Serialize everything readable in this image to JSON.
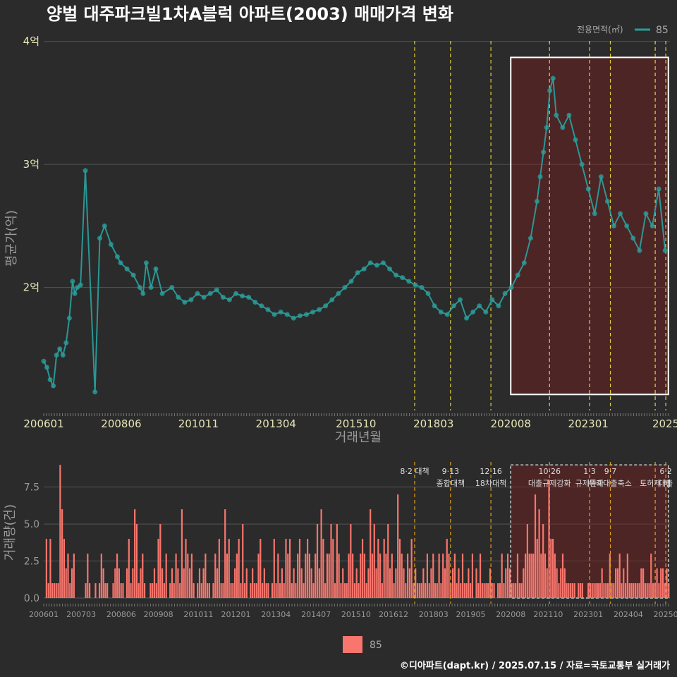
{
  "chart_data": [
    {
      "type": "line",
      "title": "양벌 대주파크빌1차A블럭 아파트(2003) 매매가격 변화",
      "xlabel": "거래년월",
      "ylabel": "평균가(억)",
      "legend_title": "전용면적(㎡)",
      "legend_label": "85",
      "legend_position": "top-right",
      "x_range": [
        2006.0,
        2025.55
      ],
      "y_range": [
        1.0,
        4.05
      ],
      "x_ticks": [
        {
          "label": "200601",
          "value": 2006.0
        },
        {
          "label": "200806",
          "value": 2008.42
        },
        {
          "label": "201011",
          "value": 2010.83
        },
        {
          "label": "201304",
          "value": 2013.25
        },
        {
          "label": "201510",
          "value": 2015.75
        },
        {
          "label": "201803",
          "value": 2018.17
        },
        {
          "label": "202008",
          "value": 2020.58
        },
        {
          "label": "202301",
          "value": 2023.0
        },
        {
          "label": "2025",
          "value": 2025.42
        }
      ],
      "y_ticks": [
        {
          "label": "2억",
          "value": 2
        },
        {
          "label": "3억",
          "value": 3
        },
        {
          "label": "4억",
          "value": 4
        }
      ],
      "policy_lines": [
        2017.58,
        2018.7,
        2019.96,
        2021.79,
        2023.04,
        2023.69,
        2025.09,
        2025.42
      ],
      "highlight": {
        "x0": 2020.58,
        "x1": 2025.5,
        "y0": 1.13,
        "y1": 3.87
      },
      "series": [
        {
          "name": "85",
          "x": [
            2006.0,
            2006.1,
            2006.2,
            2006.3,
            2006.4,
            2006.5,
            2006.6,
            2006.7,
            2006.8,
            2006.9,
            2006.97,
            2007.05,
            2007.15,
            2007.3,
            2007.6,
            2007.75,
            2007.9,
            2008.1,
            2008.3,
            2008.4,
            2008.6,
            2008.8,
            2009.0,
            2009.1,
            2009.2,
            2009.35,
            2009.5,
            2009.7,
            2010.0,
            2010.2,
            2010.4,
            2010.6,
            2010.8,
            2011.0,
            2011.2,
            2011.4,
            2011.6,
            2011.8,
            2012.0,
            2012.2,
            2012.4,
            2012.6,
            2012.8,
            2013.0,
            2013.2,
            2013.4,
            2013.6,
            2013.8,
            2014.0,
            2014.2,
            2014.4,
            2014.6,
            2014.8,
            2015.0,
            2015.2,
            2015.4,
            2015.6,
            2015.8,
            2016.0,
            2016.2,
            2016.4,
            2016.6,
            2016.8,
            2017.0,
            2017.2,
            2017.4,
            2017.6,
            2017.8,
            2018.0,
            2018.2,
            2018.4,
            2018.6,
            2018.8,
            2019.0,
            2019.2,
            2019.4,
            2019.6,
            2019.8,
            2020.0,
            2020.2,
            2020.4,
            2020.6,
            2020.8,
            2021.0,
            2021.2,
            2021.4,
            2021.5,
            2021.6,
            2021.7,
            2021.8,
            2021.9,
            2022.0,
            2022.2,
            2022.4,
            2022.6,
            2022.8,
            2023.0,
            2023.2,
            2023.4,
            2023.6,
            2023.8,
            2024.0,
            2024.2,
            2024.4,
            2024.6,
            2024.8,
            2025.0,
            2025.2,
            2025.4
          ],
          "y": [
            1.4,
            1.35,
            1.25,
            1.2,
            1.45,
            1.5,
            1.45,
            1.55,
            1.75,
            2.05,
            1.95,
            2.0,
            2.02,
            2.95,
            1.15,
            2.4,
            2.5,
            2.35,
            2.25,
            2.2,
            2.15,
            2.1,
            2.0,
            1.95,
            2.2,
            2.0,
            2.15,
            1.95,
            2.0,
            1.92,
            1.88,
            1.9,
            1.95,
            1.92,
            1.95,
            1.98,
            1.92,
            1.9,
            1.95,
            1.93,
            1.92,
            1.88,
            1.85,
            1.82,
            1.78,
            1.8,
            1.78,
            1.75,
            1.77,
            1.78,
            1.8,
            1.82,
            1.85,
            1.9,
            1.95,
            2.0,
            2.05,
            2.12,
            2.15,
            2.2,
            2.18,
            2.2,
            2.15,
            2.1,
            2.08,
            2.05,
            2.02,
            2.0,
            1.95,
            1.85,
            1.8,
            1.78,
            1.85,
            1.9,
            1.75,
            1.8,
            1.85,
            1.8,
            1.9,
            1.85,
            1.95,
            2.0,
            2.1,
            2.2,
            2.4,
            2.7,
            2.9,
            3.1,
            3.3,
            3.6,
            3.7,
            3.4,
            3.3,
            3.4,
            3.2,
            3.0,
            2.8,
            2.6,
            2.9,
            2.7,
            2.5,
            2.6,
            2.5,
            2.4,
            2.3,
            2.6,
            2.5,
            2.8,
            2.3
          ]
        }
      ]
    },
    {
      "type": "bar",
      "xlabel": "",
      "ylabel": "거래량(건)",
      "x_range": [
        2006.0,
        2025.55
      ],
      "y_range": [
        0,
        9.2
      ],
      "y_ticks": [
        {
          "label": "0.0",
          "value": 0
        },
        {
          "label": "2.5",
          "value": 2.5
        },
        {
          "label": "5.0",
          "value": 5
        },
        {
          "label": "7.5",
          "value": 7.5
        }
      ],
      "x_ticks": [
        {
          "label": "200601",
          "value": 2006.0
        },
        {
          "label": "200703",
          "value": 2007.17
        },
        {
          "label": "200806",
          "value": 2008.42
        },
        {
          "label": "200908",
          "value": 2009.58
        },
        {
          "label": "201011",
          "value": 2010.83
        },
        {
          "label": "201201",
          "value": 2012.0
        },
        {
          "label": "201304",
          "value": 2013.25
        },
        {
          "label": "201407",
          "value": 2014.5
        },
        {
          "label": "201510",
          "value": 2015.75
        },
        {
          "label": "201612",
          "value": 2016.92
        },
        {
          "label": "201803",
          "value": 2018.17
        },
        {
          "label": "201905",
          "value": 2019.33
        },
        {
          "label": "202008",
          "value": 2020.58
        },
        {
          "label": "202110",
          "value": 2021.75
        },
        {
          "label": "202301",
          "value": 2023.0
        },
        {
          "label": "202404",
          "value": 2024.25
        },
        {
          "label": "20250",
          "value": 2025.42
        }
      ],
      "legend_label": "85",
      "highlight": {
        "x0": 2020.58,
        "x1": 2025.5,
        "y0": 0,
        "y1": 9.0
      },
      "annotations": [
        {
          "x": 2017.58,
          "line1": "8·2 대책",
          "line2": ""
        },
        {
          "x": 2018.7,
          "line1": "9·13",
          "line2": "종합대책"
        },
        {
          "x": 2019.96,
          "line1": "12·16",
          "line2": "18차대책"
        },
        {
          "x": 2021.79,
          "line1": "10·26",
          "line2": "대출규제강화"
        },
        {
          "x": 2023.04,
          "line1": "1·3",
          "line2": "규제완화"
        },
        {
          "x": 2023.69,
          "line1": "9·7",
          "line2": "특례대출축소"
        },
        {
          "x": 2025.09,
          "line1": "",
          "line2": "토허제 해"
        },
        {
          "x": 2025.42,
          "line1": "6·2",
          "line2": "대출"
        }
      ],
      "values": [
        0,
        4,
        1,
        4,
        1,
        1,
        1,
        1,
        9,
        6,
        4,
        2,
        3,
        1,
        2,
        3,
        0,
        0,
        0,
        0,
        0,
        1,
        3,
        1,
        0,
        0,
        1,
        0,
        1,
        3,
        2,
        1,
        1,
        0,
        0,
        1,
        2,
        3,
        2,
        1,
        1,
        0,
        2,
        4,
        1,
        2,
        6,
        5,
        1,
        2,
        3,
        1,
        0,
        0,
        1,
        1,
        2,
        1,
        4,
        5,
        2,
        1,
        3,
        0,
        1,
        2,
        1,
        3,
        2,
        1,
        6,
        2,
        4,
        3,
        2,
        3,
        1,
        0,
        1,
        2,
        1,
        2,
        3,
        1,
        1,
        0,
        1,
        3,
        2,
        4,
        1,
        1,
        6,
        3,
        4,
        1,
        1,
        2,
        3,
        4,
        1,
        5,
        1,
        2,
        0,
        1,
        2,
        1,
        1,
        3,
        4,
        1,
        2,
        1,
        1,
        0,
        1,
        4,
        1,
        3,
        1,
        2,
        1,
        4,
        3,
        4,
        1,
        2,
        1,
        3,
        4,
        2,
        1,
        3,
        4,
        3,
        2,
        1,
        3,
        5,
        2,
        6,
        4,
        1,
        3,
        3,
        5,
        4,
        1,
        5,
        3,
        1,
        2,
        1,
        1,
        3,
        5,
        3,
        1,
        2,
        1,
        3,
        4,
        3,
        1,
        2,
        6,
        3,
        5,
        2,
        4,
        3,
        1,
        4,
        3,
        5,
        2,
        3,
        1,
        2,
        7,
        4,
        3,
        2,
        1,
        3,
        2,
        4,
        1,
        2,
        1,
        1,
        1,
        2,
        1,
        3,
        1,
        2,
        3,
        1,
        1,
        3,
        1,
        3,
        2,
        4,
        3,
        1,
        2,
        3,
        1,
        2,
        1,
        3,
        1,
        1,
        2,
        1,
        3,
        0,
        2,
        1,
        3,
        1,
        1,
        1,
        1,
        2,
        1,
        1,
        0,
        1,
        1,
        3,
        1,
        2,
        3,
        2,
        1,
        1,
        1,
        3,
        1,
        1,
        2,
        3,
        5,
        3,
        3,
        3,
        7,
        4,
        6,
        3,
        5,
        3,
        2,
        8,
        4,
        4,
        3,
        2,
        1,
        2,
        3,
        2,
        1,
        1,
        1,
        1,
        1,
        0,
        1,
        1,
        1,
        0,
        0,
        1,
        1,
        1,
        1,
        1,
        1,
        1,
        2,
        1,
        1,
        1,
        3,
        1,
        1,
        2,
        2,
        3,
        1,
        2,
        1,
        3,
        1,
        1,
        1,
        1,
        1,
        1,
        2,
        2,
        1,
        1,
        1,
        3,
        1,
        1,
        2,
        1,
        2,
        2,
        1,
        2,
        1
      ]
    }
  ],
  "footer": "©디아파트(dapt.kr) / 2025.07.15 / 자료=국토교통부 실거래가",
  "colors": {
    "line": "#2a9d9a",
    "bar": "#f8766d",
    "policy": "#e0d040",
    "highlight": "#5a2020"
  }
}
